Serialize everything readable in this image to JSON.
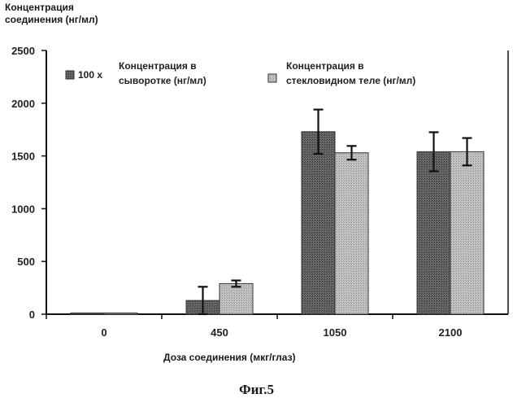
{
  "chart_data": {
    "type": "bar",
    "ylabel": [
      "Концентрация",
      "соединения (нг/мл)"
    ],
    "xlabel": "Доза соединения (мкг/глаз)",
    "categories": [
      "0",
      "450",
      "1050",
      "2100"
    ],
    "ylim": [
      0,
      2500
    ],
    "yticks": [
      0,
      500,
      1000,
      1500,
      2000,
      2500
    ],
    "legend_position": "top",
    "series": [
      {
        "name": "Концентрация в сыворотке (нг/мл)",
        "prefix": "100 x",
        "label_lines": [
          "Концентрация  в",
          "сыворотке (нг/мл)"
        ],
        "values": [
          0,
          130,
          1730,
          1540
        ],
        "errors": [
          0,
          130,
          210,
          185
        ],
        "color": "#555555"
      },
      {
        "name": "Концентрация в стекловидном теле (нг/мл)",
        "label_lines": [
          "Концентрация  в",
          "стекловидном теле  (нг/мл)"
        ],
        "values": [
          0,
          290,
          1530,
          1540
        ],
        "errors": [
          0,
          30,
          65,
          130
        ],
        "color": "#b0b0b0"
      }
    ]
  },
  "caption": "Фиг.5"
}
